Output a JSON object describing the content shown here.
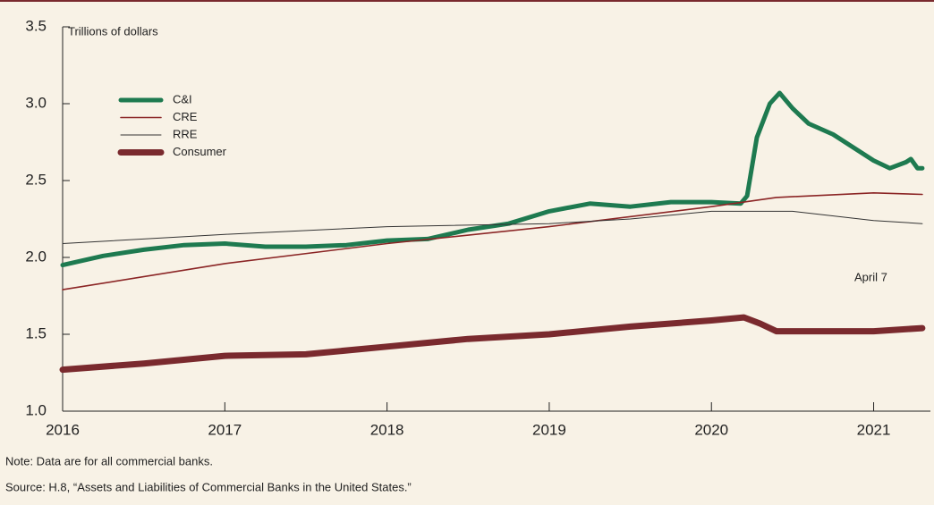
{
  "chart_data": {
    "type": "line",
    "y_label": "Trillions of dollars",
    "annotation": "April 7",
    "note": "Note: Data are for all commercial banks.",
    "source": "Source: H.8, “Assets and Liabilities of Commercial Banks in the United States.”",
    "xlim": [
      2016,
      2021.35
    ],
    "xticks": [
      2016,
      2017,
      2018,
      2019,
      2020,
      2021
    ],
    "ylim": [
      1.0,
      3.5
    ],
    "yticks": [
      {
        "value": 1.0,
        "label": "1.0"
      },
      1.5,
      {
        "value": 2.0,
        "label": "2.0"
      },
      2.5,
      {
        "value": 3.0,
        "label": "3.0"
      },
      3.5
    ],
    "series": [
      {
        "name": "C&I",
        "color": "#1e7a50",
        "width": 5,
        "x": [
          2016,
          2016.25,
          2016.5,
          2016.75,
          2017,
          2017.25,
          2017.5,
          2017.75,
          2018,
          2018.25,
          2018.5,
          2018.75,
          2019,
          2019.25,
          2019.5,
          2019.75,
          2020,
          2020.18,
          2020.22,
          2020.28,
          2020.36,
          2020.42,
          2020.5,
          2020.6,
          2020.75,
          2021,
          2021.1,
          2021.2,
          2021.23,
          2021.27,
          2021.3
        ],
        "values": [
          1.95,
          2.01,
          2.05,
          2.08,
          2.09,
          2.07,
          2.07,
          2.08,
          2.11,
          2.12,
          2.18,
          2.22,
          2.3,
          2.35,
          2.33,
          2.36,
          2.36,
          2.35,
          2.4,
          2.78,
          3.0,
          3.07,
          2.97,
          2.87,
          2.8,
          2.63,
          2.58,
          2.62,
          2.64,
          2.58,
          2.58
        ]
      },
      {
        "name": "CRE",
        "color": "#8b2525",
        "width": 1.6,
        "x": [
          2016,
          2017,
          2018,
          2019,
          2020,
          2020.4,
          2021,
          2021.3
        ],
        "values": [
          1.79,
          1.96,
          2.09,
          2.2,
          2.33,
          2.39,
          2.42,
          2.41
        ]
      },
      {
        "name": "RRE",
        "color": "#333333",
        "width": 1,
        "x": [
          2016,
          2017,
          2018,
          2019,
          2019.5,
          2020,
          2020.5,
          2021,
          2021.3
        ],
        "values": [
          2.09,
          2.15,
          2.2,
          2.22,
          2.25,
          2.3,
          2.3,
          2.24,
          2.22
        ]
      },
      {
        "name": "Consumer",
        "color": "#7a2a2e",
        "width": 7,
        "x": [
          2016,
          2016.5,
          2017,
          2017.5,
          2018,
          2018.5,
          2019,
          2019.5,
          2020,
          2020.2,
          2020.3,
          2020.4,
          2020.75,
          2021,
          2021.3
        ],
        "values": [
          1.27,
          1.31,
          1.36,
          1.37,
          1.42,
          1.47,
          1.5,
          1.55,
          1.59,
          1.61,
          1.57,
          1.52,
          1.52,
          1.52,
          1.54
        ]
      }
    ]
  }
}
